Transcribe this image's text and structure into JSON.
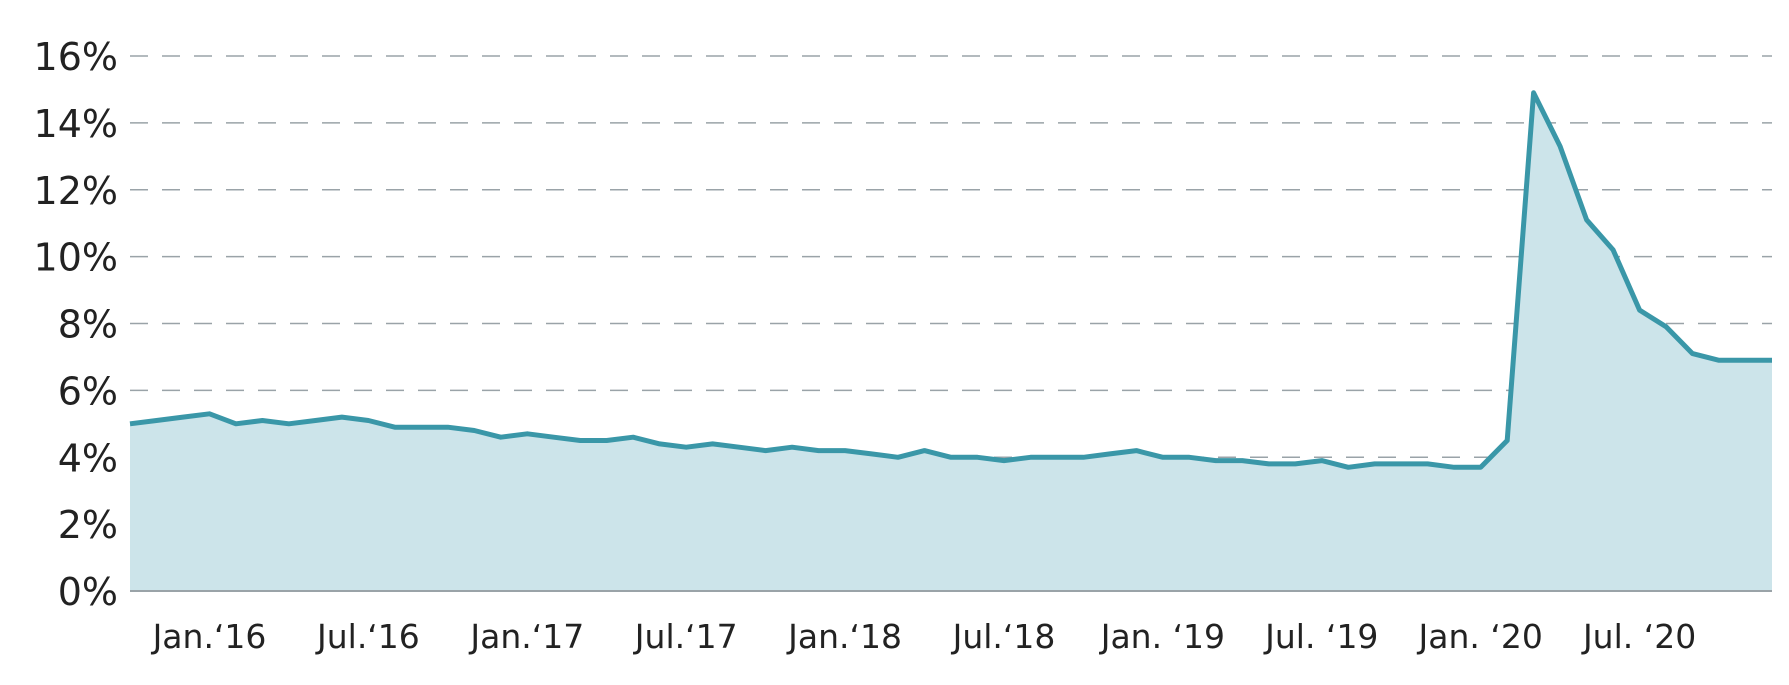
{
  "chart_data": {
    "type": "area",
    "title": "",
    "xlabel": "",
    "ylabel": "",
    "ylim": [
      0,
      16
    ],
    "y_tick_values": [
      0,
      2,
      4,
      6,
      8,
      10,
      12,
      14,
      16
    ],
    "y_tick_labels": [
      "0%",
      "2%",
      "4%",
      "6%",
      "8%",
      "10%",
      "12%",
      "14%",
      "16%"
    ],
    "grid": true,
    "x_ticks": [
      {
        "label": "Jan.‘16",
        "date": "2016-01"
      },
      {
        "label": "Jul.‘16",
        "date": "2016-07"
      },
      {
        "label": "Jan.‘17",
        "date": "2017-01"
      },
      {
        "label": "Jul.‘17",
        "date": "2017-07"
      },
      {
        "label": "Jan.‘18",
        "date": "2018-01"
      },
      {
        "label": "Jul.‘18",
        "date": "2018-07"
      },
      {
        "label": "Jan. ‘19",
        "date": "2019-01"
      },
      {
        "label": "Jul. ‘19",
        "date": "2019-07"
      },
      {
        "label": "Jan. ‘20",
        "date": "2020-01"
      },
      {
        "label": "Jul. ‘20",
        "date": "2020-07"
      }
    ],
    "series": [
      {
        "x": [
          "2015-10",
          "2015-11",
          "2015-12",
          "2016-01",
          "2016-02",
          "2016-03",
          "2016-04",
          "2016-05",
          "2016-06",
          "2016-07",
          "2016-08",
          "2016-09",
          "2016-10",
          "2016-11",
          "2016-12",
          "2017-01",
          "2017-02",
          "2017-03",
          "2017-04",
          "2017-05",
          "2017-06",
          "2017-07",
          "2017-08",
          "2017-09",
          "2017-10",
          "2017-11",
          "2017-12",
          "2018-01",
          "2018-02",
          "2018-03",
          "2018-04",
          "2018-05",
          "2018-06",
          "2018-07",
          "2018-08",
          "2018-09",
          "2018-10",
          "2018-11",
          "2018-12",
          "2019-01",
          "2019-02",
          "2019-03",
          "2019-04",
          "2019-05",
          "2019-06",
          "2019-07",
          "2019-08",
          "2019-09",
          "2019-10",
          "2019-11",
          "2019-12",
          "2020-01",
          "2020-02",
          "2020-03",
          "2020-04",
          "2020-05",
          "2020-06",
          "2020-07",
          "2020-08",
          "2020-09",
          "2020-10",
          "2020-11",
          "2020-12"
        ],
        "values": [
          5.0,
          5.1,
          5.2,
          5.3,
          5.0,
          5.1,
          5.0,
          5.1,
          5.2,
          5.1,
          4.9,
          4.9,
          4.9,
          4.8,
          4.6,
          4.7,
          4.6,
          4.5,
          4.5,
          4.6,
          4.4,
          4.3,
          4.4,
          4.3,
          4.2,
          4.3,
          4.2,
          4.2,
          4.1,
          4.0,
          4.2,
          4.0,
          4.0,
          3.9,
          4.0,
          4.0,
          4.0,
          4.1,
          4.2,
          4.0,
          4.0,
          3.9,
          3.9,
          3.8,
          3.8,
          3.9,
          3.7,
          3.8,
          3.8,
          3.8,
          3.7,
          3.7,
          4.5,
          14.9,
          13.3,
          11.1,
          10.2,
          8.4,
          7.9,
          7.1,
          6.9,
          6.9,
          6.9
        ],
        "color": "#3a97a8",
        "fill": "#cce4ea"
      }
    ]
  }
}
